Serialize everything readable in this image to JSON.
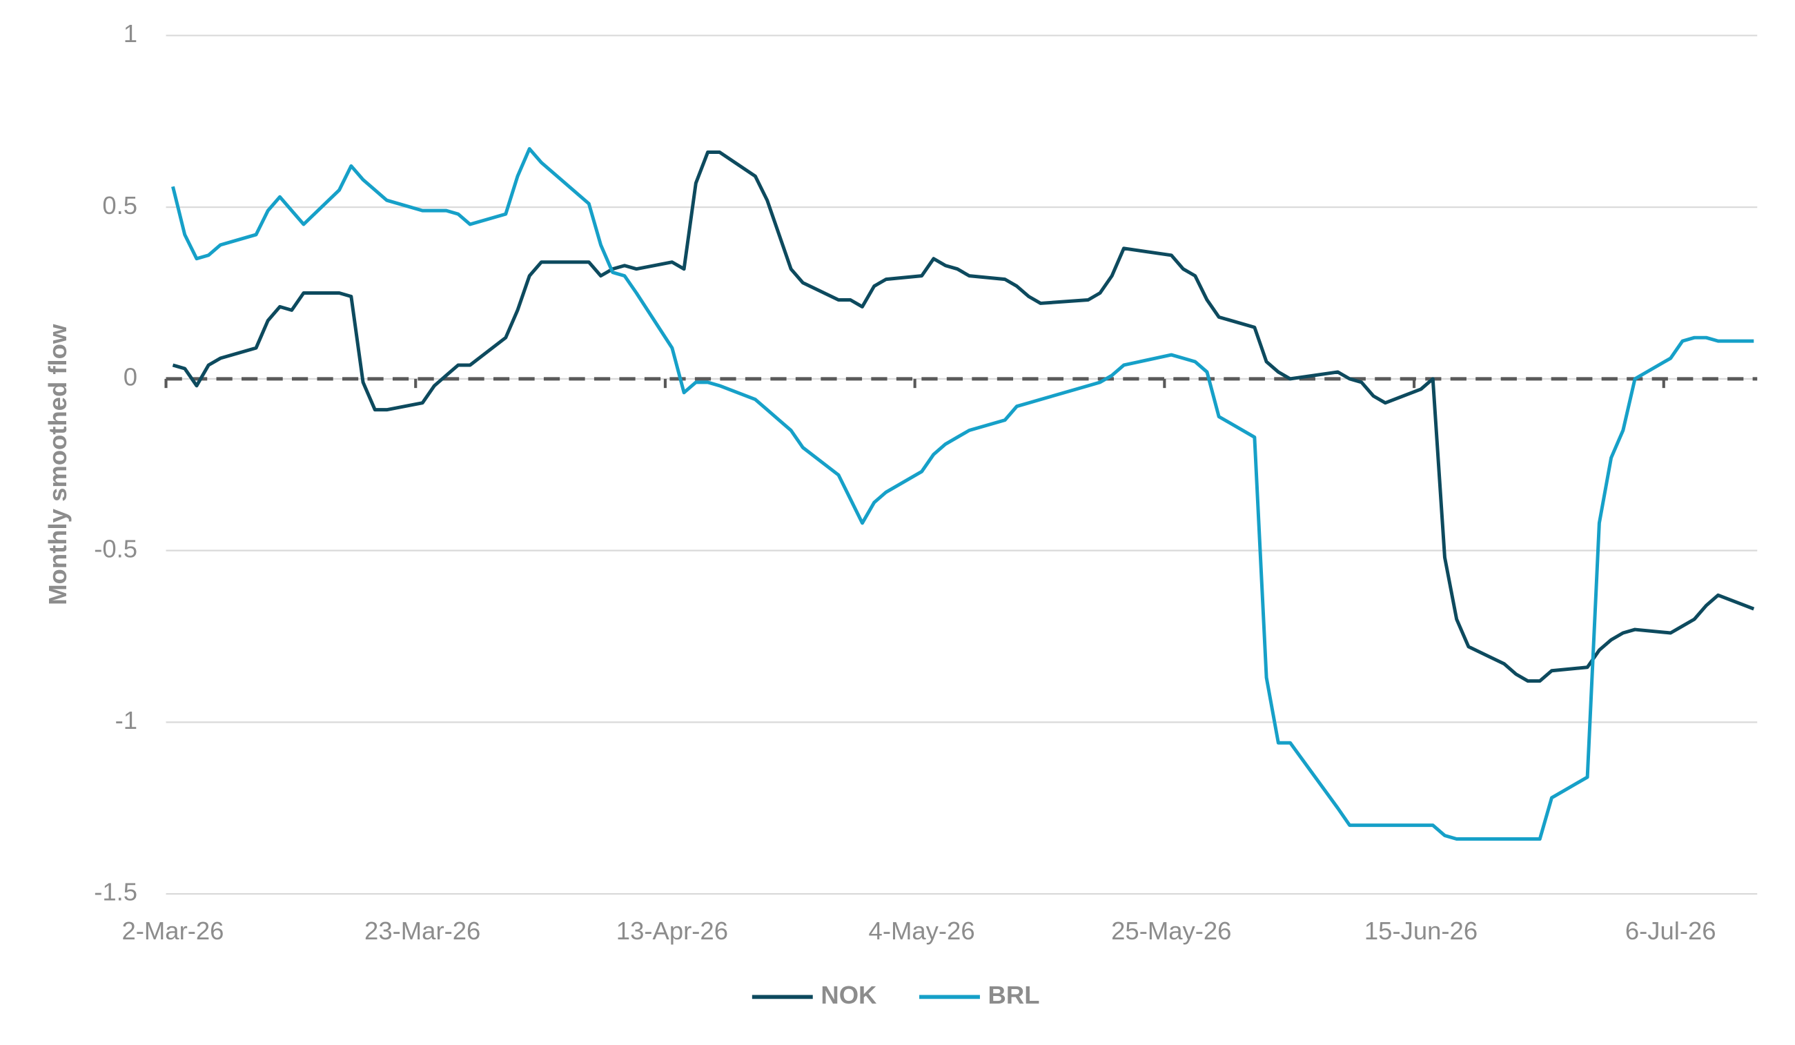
{
  "chart_data": {
    "type": "line",
    "y_label": "Monthly smoothed flow",
    "x": [
      "2026-03-02",
      "2026-03-03",
      "2026-03-04",
      "2026-03-05",
      "2026-03-06",
      "2026-03-09",
      "2026-03-10",
      "2026-03-11",
      "2026-03-12",
      "2026-03-13",
      "2026-03-16",
      "2026-03-17",
      "2026-03-18",
      "2026-03-19",
      "2026-03-20",
      "2026-03-23",
      "2026-03-24",
      "2026-03-25",
      "2026-03-26",
      "2026-03-27",
      "2026-03-30",
      "2026-03-31",
      "2026-04-01",
      "2026-04-02",
      "2026-04-06",
      "2026-04-07",
      "2026-04-08",
      "2026-04-09",
      "2026-04-10",
      "2026-04-13",
      "2026-04-14",
      "2026-04-15",
      "2026-04-16",
      "2026-04-17",
      "2026-04-20",
      "2026-04-21",
      "2026-04-22",
      "2026-04-23",
      "2026-04-24",
      "2026-04-27",
      "2026-04-28",
      "2026-04-29",
      "2026-04-30",
      "2026-05-01",
      "2026-05-04",
      "2026-05-05",
      "2026-05-06",
      "2026-05-07",
      "2026-05-08",
      "2026-05-11",
      "2026-05-12",
      "2026-05-13",
      "2026-05-14",
      "2026-05-18",
      "2026-05-19",
      "2026-05-20",
      "2026-05-21",
      "2026-05-25",
      "2026-05-26",
      "2026-05-27",
      "2026-05-28",
      "2026-05-29",
      "2026-06-01",
      "2026-06-02",
      "2026-06-03",
      "2026-06-04",
      "2026-06-08",
      "2026-06-09",
      "2026-06-10",
      "2026-06-11",
      "2026-06-12",
      "2026-06-15",
      "2026-06-16",
      "2026-06-17",
      "2026-06-18",
      "2026-06-19",
      "2026-06-22",
      "2026-06-23",
      "2026-06-24",
      "2026-06-25",
      "2026-06-26",
      "2026-06-29",
      "2026-06-30",
      "2026-07-01",
      "2026-07-02",
      "2026-07-03",
      "2026-07-06",
      "2026-07-07",
      "2026-07-08",
      "2026-07-09",
      "2026-07-10",
      "2026-07-13"
    ],
    "series": [
      {
        "name": "NOK",
        "color": "#0d4a5e",
        "values": [
          0.04,
          0.03,
          -0.02,
          0.04,
          0.06,
          0.09,
          0.17,
          0.21,
          0.2,
          0.25,
          0.25,
          0.24,
          -0.01,
          -0.09,
          -0.09,
          -0.07,
          -0.02,
          0.01,
          0.04,
          0.04,
          0.12,
          0.2,
          0.3,
          0.34,
          0.34,
          0.3,
          0.32,
          0.33,
          0.32,
          0.34,
          0.32,
          0.57,
          0.66,
          0.66,
          0.59,
          0.52,
          0.42,
          0.32,
          0.28,
          0.23,
          0.23,
          0.21,
          0.27,
          0.29,
          0.3,
          0.35,
          0.33,
          0.32,
          0.3,
          0.29,
          0.27,
          0.24,
          0.22,
          0.23,
          0.25,
          0.3,
          0.38,
          0.36,
          0.32,
          0.3,
          0.23,
          0.18,
          0.15,
          0.05,
          0.02,
          0.0,
          0.02,
          0.0,
          -0.01,
          -0.05,
          -0.07,
          -0.03,
          0.0,
          -0.52,
          -0.7,
          -0.78,
          -0.83,
          -0.86,
          -0.88,
          -0.88,
          -0.85,
          -0.84,
          -0.79,
          -0.76,
          -0.74,
          -0.73,
          -0.74,
          -0.72,
          -0.7,
          -0.66,
          -0.63,
          -0.67
        ]
      },
      {
        "name": "BRL",
        "color": "#16a0c8",
        "values": [
          0.56,
          0.42,
          0.35,
          0.36,
          0.39,
          0.42,
          0.49,
          0.53,
          0.49,
          0.45,
          0.55,
          0.62,
          0.58,
          0.55,
          0.52,
          0.49,
          0.49,
          0.49,
          0.48,
          0.45,
          0.48,
          0.59,
          0.67,
          0.63,
          0.51,
          0.39,
          0.31,
          0.3,
          0.25,
          0.09,
          -0.04,
          -0.01,
          -0.01,
          -0.02,
          -0.06,
          -0.09,
          -0.12,
          -0.15,
          -0.2,
          -0.28,
          -0.35,
          -0.42,
          -0.36,
          -0.33,
          -0.27,
          -0.22,
          -0.19,
          -0.17,
          -0.15,
          -0.12,
          -0.08,
          -0.07,
          -0.06,
          -0.02,
          -0.01,
          0.01,
          0.04,
          0.07,
          0.06,
          0.05,
          0.02,
          -0.11,
          -0.17,
          -0.87,
          -1.06,
          -1.06,
          -1.25,
          -1.3,
          -1.3,
          -1.3,
          -1.3,
          -1.3,
          -1.3,
          -1.33,
          -1.34,
          -1.34,
          -1.34,
          -1.34,
          -1.34,
          -1.34,
          -1.22,
          -1.16,
          -0.42,
          -0.23,
          -0.15,
          0.0,
          0.06,
          0.11,
          0.12,
          0.12,
          0.11,
          0.11
        ]
      }
    ],
    "xlim": [
      "2026-03-02",
      "2026-07-13"
    ],
    "xticks": [
      {
        "value": "2026-03-02",
        "label": "2-Mar-26"
      },
      {
        "value": "2026-03-23",
        "label": "23-Mar-26"
      },
      {
        "value": "2026-04-13",
        "label": "13-Apr-26"
      },
      {
        "value": "2026-05-04",
        "label": "4-May-26"
      },
      {
        "value": "2026-05-25",
        "label": "25-May-26"
      },
      {
        "value": "2026-06-15",
        "label": "15-Jun-26"
      },
      {
        "value": "2026-07-06",
        "label": "6-Jul-26"
      }
    ],
    "ylim": [
      -1.5,
      1
    ],
    "yticks": [
      1,
      {
        "value": 0.5,
        "label": "0.5"
      },
      0,
      {
        "value": -0.5,
        "label": "-0.5"
      },
      -1,
      {
        "value": -1.5,
        "label": "-1.5"
      }
    ],
    "grid": true,
    "reference_line": 0,
    "legend": "bottom"
  }
}
